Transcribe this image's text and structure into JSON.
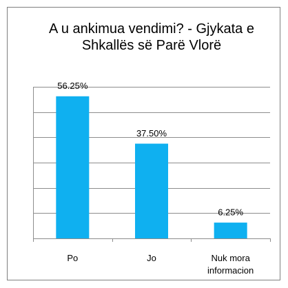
{
  "chart_data": {
    "type": "bar",
    "title": "A u ankimua vendimi? - Gjykata e Shkallës së Parë Vlorë",
    "categories": [
      "Po",
      "Jo",
      "Nuk mora informacion"
    ],
    "values": [
      56.25,
      37.5,
      6.25
    ],
    "value_labels": [
      "56.25%",
      "37.50%",
      "6.25%"
    ],
    "color": "#0fb0f0",
    "ylim": [
      0,
      60
    ],
    "yticks": [
      0,
      10,
      20,
      30,
      40,
      50,
      60
    ],
    "grid": true
  }
}
